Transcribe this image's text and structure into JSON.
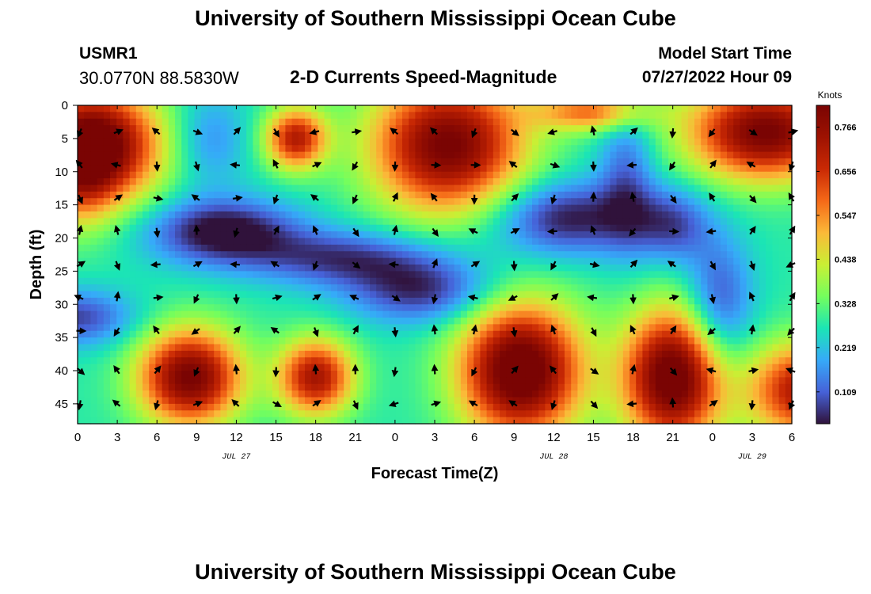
{
  "header": {
    "title": "University of Southern Mississippi Ocean Cube",
    "station_id": "USMR1",
    "coords": "30.0770N  88.5830W",
    "subtitle": "2-D Currents Speed-Magnitude",
    "model_label": "Model Start Time",
    "model_time": "07/27/2022 Hour 09"
  },
  "footer": {
    "title": "University of Southern Mississippi Ocean Cube"
  },
  "chart_data": {
    "type": "heatmap",
    "title": "2-D Currents Speed-Magnitude",
    "xlabel": "Forecast Time(Z)",
    "ylabel": "Depth (ft)",
    "x_hours": [
      0,
      54
    ],
    "ylim": [
      0,
      48
    ],
    "x_ticks": [
      0,
      3,
      6,
      9,
      12,
      15,
      18,
      21,
      24,
      27,
      30,
      33,
      36,
      39,
      42,
      45,
      48,
      51,
      54
    ],
    "x_tick_labels": [
      "0",
      "3",
      "6",
      "9",
      "12",
      "15",
      "18",
      "21",
      "0",
      "3",
      "6",
      "9",
      "12",
      "15",
      "18",
      "21",
      "0",
      "3",
      "6"
    ],
    "y_ticks": [
      0,
      5,
      10,
      15,
      20,
      25,
      30,
      35,
      40,
      45
    ],
    "y_tick_labels": [
      "0",
      "5",
      "10",
      "15",
      "20",
      "25",
      "30",
      "35",
      "40",
      "45"
    ],
    "date_labels": [
      {
        "hour": 12,
        "text": "JUL 27"
      },
      {
        "hour": 36,
        "text": "JUL 28"
      },
      {
        "hour": 51,
        "text": "JUL 29"
      }
    ],
    "colorbar": {
      "title": "Knots",
      "min": 0.03,
      "max": 0.82,
      "ticks": [
        0.109,
        0.219,
        0.328,
        0.438,
        0.547,
        0.656,
        0.766
      ],
      "tick_labels": [
        "0.109",
        "0.219",
        "0.328",
        "0.438",
        "0.547",
        "0.656",
        "0.766"
      ]
    },
    "speed_centers": [
      {
        "x": 2,
        "y": 6,
        "a": 0.5,
        "sx": 3.2,
        "sy": 6
      },
      {
        "x": 0,
        "y": 9,
        "a": 0.3,
        "sx": 2,
        "sy": 6
      },
      {
        "x": 16.5,
        "y": 5,
        "a": 0.42,
        "sx": 1.6,
        "sy": 3.2
      },
      {
        "x": 28,
        "y": 6,
        "a": 0.55,
        "sx": 4,
        "sy": 7
      },
      {
        "x": 39,
        "y": 1,
        "a": 0.3,
        "sx": 3,
        "sy": 2
      },
      {
        "x": 52,
        "y": 4,
        "a": 0.55,
        "sx": 4,
        "sy": 5
      },
      {
        "x": 8.5,
        "y": 41,
        "a": 0.55,
        "sx": 2.7,
        "sy": 5
      },
      {
        "x": 18,
        "y": 41,
        "a": 0.45,
        "sx": 2,
        "sy": 4
      },
      {
        "x": 33.5,
        "y": 40,
        "a": 0.62,
        "sx": 3.2,
        "sy": 7
      },
      {
        "x": 45,
        "y": 41,
        "a": 0.6,
        "sx": 2.6,
        "sy": 7
      },
      {
        "x": 55,
        "y": 43,
        "a": 0.45,
        "sx": 3,
        "sy": 5
      },
      {
        "x": 11,
        "y": 19,
        "a": -0.28,
        "sx": 4,
        "sy": 3.5
      },
      {
        "x": 20,
        "y": 23,
        "a": -0.2,
        "sx": 5,
        "sy": 3
      },
      {
        "x": 26,
        "y": 28,
        "a": -0.22,
        "sx": 4,
        "sy": 3.5
      },
      {
        "x": 0,
        "y": 32,
        "a": -0.2,
        "sx": 3,
        "sy": 3
      },
      {
        "x": 37,
        "y": 17,
        "a": -0.25,
        "sx": 4,
        "sy": 4
      },
      {
        "x": 45,
        "y": 18,
        "a": -0.18,
        "sx": 2,
        "sy": 4
      },
      {
        "x": 48.5,
        "y": 30,
        "a": -0.2,
        "sx": 1.8,
        "sy": 7
      },
      {
        "x": 41.5,
        "y": 10,
        "a": -0.15,
        "sx": 1.5,
        "sy": 8
      },
      {
        "x": 10,
        "y": 5,
        "a": -0.12,
        "sx": 2,
        "sy": 5
      }
    ],
    "base_speed": 0.28,
    "arrow_rows": [
      4,
      9,
      14,
      19,
      24,
      29,
      34,
      40,
      45
    ],
    "arrow_cols": [
      0,
      3,
      6,
      9,
      12,
      15,
      18,
      21,
      24,
      27,
      30,
      33,
      36,
      39,
      42,
      45,
      48,
      51,
      54
    ]
  }
}
